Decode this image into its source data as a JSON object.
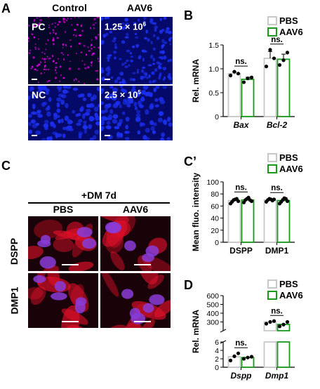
{
  "colors": {
    "nucleus_blue": "#1b2ff0",
    "dapi_dark": "#050a78",
    "pc_magenta": "#e000e0",
    "stain_red": "#e0102a",
    "aav6_green": "#1a9a1a",
    "pbs_gray": "#c8c8c8"
  },
  "panel_labels": {
    "a": "A",
    "b": "B",
    "c": "C",
    "c2": "C’",
    "d": "D"
  },
  "panel_a": {
    "col_headers": [
      "Control",
      "AAV6"
    ],
    "tiles": [
      {
        "name": "pc",
        "label": "PC"
      },
      {
        "name": "dose-high",
        "label_base": "1.25 × 10",
        "label_exp": "6"
      },
      {
        "name": "nc",
        "label": "NC"
      },
      {
        "name": "dose-low",
        "label_base": "2.5 × 10",
        "label_exp": "5"
      }
    ]
  },
  "panel_c": {
    "header": "+DM 7d",
    "col_headers": [
      "PBS",
      "AAV6"
    ],
    "row_headers": [
      "DSPP",
      "DMP1"
    ]
  },
  "chart_data": [
    {
      "type": "bar",
      "panel": "B",
      "ylabel": "Rel. mRNA",
      "categories": [
        "Bax",
        "Bcl-2"
      ],
      "ylim": [
        0,
        1.5
      ],
      "yticks": [
        0,
        0.5,
        1.0,
        1.5
      ],
      "ytick_labels": [
        "0",
        "0.5",
        "1.0",
        "1.5"
      ],
      "series": [
        {
          "name": "PBS",
          "values": [
            0.9,
            1.22
          ],
          "points": [
            [
              0.86,
              0.94,
              0.9
            ],
            [
              1.05,
              1.4,
              1.22
            ]
          ]
        },
        {
          "name": "AAV6",
          "values": [
            0.78,
            1.2
          ],
          "points": [
            [
              0.72,
              0.8,
              0.82
            ],
            [
              1.08,
              1.18,
              1.34
            ]
          ]
        }
      ],
      "annotations": [
        "ns.",
        "ns."
      ]
    },
    {
      "type": "bar",
      "panel": "C’",
      "ylabel": "Mean fluo. intensity",
      "categories": [
        "DSPP",
        "DMP1"
      ],
      "ylim": [
        0,
        100
      ],
      "yticks": [
        0,
        20,
        40,
        60,
        80,
        100
      ],
      "ytick_labels": [
        "0",
        "20",
        "40",
        "60",
        "80",
        "100"
      ],
      "series": [
        {
          "name": "PBS",
          "values": [
            69,
            70
          ],
          "points": [
            [
              64,
              67,
              70,
              71,
              72,
              68
            ],
            [
              67,
              70,
              72,
              71,
              69,
              71
            ]
          ]
        },
        {
          "name": "AAV6",
          "values": [
            70,
            69
          ],
          "points": [
            [
              66,
              70,
              72,
              74,
              70,
              68
            ],
            [
              64,
              67,
              70,
              73,
              72,
              68
            ]
          ]
        }
      ],
      "annotations": [
        "ns.",
        "ns."
      ]
    },
    {
      "type": "bar",
      "panel": "D",
      "ylabel": "Rel. mRNA",
      "categories": [
        "Dspp",
        "Dmp1"
      ],
      "axis_break": [
        6,
        200
      ],
      "yticks": [
        0,
        2,
        4,
        6,
        300,
        400,
        500,
        600
      ],
      "ytick_labels": [
        "0",
        "2",
        "4",
        "6",
        "300",
        "400",
        "500",
        "600"
      ],
      "series": [
        {
          "name": "PBS",
          "values": [
            2.5,
            300
          ],
          "points": [
            [
              1.6,
              2.6,
              3.3
            ],
            [
              280,
              300,
              310
            ]
          ]
        },
        {
          "name": "AAV6",
          "values": [
            2.3,
            272
          ],
          "points": [
            [
              2.0,
              2.3,
              2.5
            ],
            [
              250,
              270,
              300
            ]
          ]
        }
      ],
      "annotations": [
        "ns.",
        "ns."
      ]
    }
  ]
}
